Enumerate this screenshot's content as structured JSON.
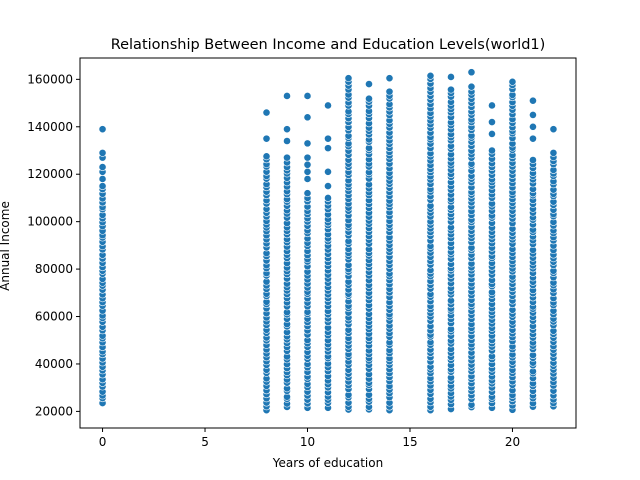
{
  "chart_data": {
    "type": "scatter",
    "title": "Relationship Between Income and Education Levels(world1)",
    "xlabel": "Years of education",
    "ylabel": "Annual Income",
    "xlim": [
      -1.1,
      23.1
    ],
    "ylim": [
      13000,
      169000
    ],
    "xticks": [
      0,
      5,
      10,
      15,
      20
    ],
    "yticks": [
      20000,
      40000,
      60000,
      80000,
      100000,
      120000,
      140000,
      160000
    ],
    "grid": false,
    "legend": "none",
    "marker_color": "#1f77b4",
    "series": [
      {
        "groups": [
          {
            "x": 0,
            "min": 23500,
            "max": 115000,
            "extra": [
              118000,
              121000,
              123000,
              127000,
              129000,
              139000
            ]
          },
          {
            "x": 8,
            "min": 20500,
            "max": 128000,
            "extra": [
              135000,
              146000
            ]
          },
          {
            "x": 9,
            "min": 21500,
            "max": 125000,
            "extra": [
              127000,
              134000,
              139000,
              153000
            ]
          },
          {
            "x": 10,
            "min": 21500,
            "max": 110000,
            "extra": [
              112000,
              118000,
              121000,
              124000,
              127000,
              133000,
              144000,
              153000
            ]
          },
          {
            "x": 11,
            "min": 21500,
            "max": 110000,
            "extra": [
              115000,
              121000,
              131000,
              135000,
              149000
            ]
          },
          {
            "x": 12,
            "min": 20500,
            "max": 160500,
            "extra": []
          },
          {
            "x": 13,
            "min": 20500,
            "max": 152000,
            "extra": [
              158000
            ]
          },
          {
            "x": 14,
            "min": 20500,
            "max": 155000,
            "extra": [
              160500
            ]
          },
          {
            "x": 16,
            "min": 20500,
            "max": 161500,
            "extra": []
          },
          {
            "x": 17,
            "min": 21000,
            "max": 156000,
            "extra": [
              161000
            ]
          },
          {
            "x": 18,
            "min": 21500,
            "max": 157000,
            "extra": [
              163000
            ]
          },
          {
            "x": 19,
            "min": 21500,
            "max": 130000,
            "extra": [
              137000,
              142000,
              149000
            ]
          },
          {
            "x": 20,
            "min": 20500,
            "max": 159000,
            "extra": []
          },
          {
            "x": 21,
            "min": 22000,
            "max": 126000,
            "extra": [
              135000,
              140000,
              145000,
              151000
            ]
          },
          {
            "x": 22,
            "min": 22000,
            "max": 129000,
            "extra": [
              139000
            ]
          }
        ]
      }
    ]
  }
}
